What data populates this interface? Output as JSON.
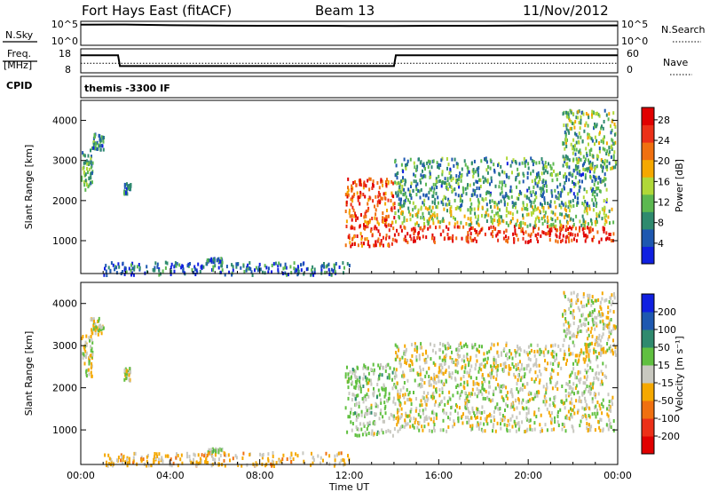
{
  "header": {
    "station": "Fort Hays East (fitACF)",
    "beam": "Beam 13",
    "date": "11/Nov/2012"
  },
  "strips": {
    "nsky_label": "N.Sky",
    "nsky_ticks": [
      "10^5",
      "10^0"
    ],
    "nsearch_label": "N.Search",
    "nsearch_ticks": [
      "10^5",
      "10^0"
    ],
    "freq_label_1": "Freq.",
    "freq_label_2": "[MHz]",
    "freq_ticks": [
      "18",
      "8"
    ],
    "nave_label": "Nave",
    "nave_ticks": [
      "60",
      "0"
    ],
    "cpid_label": "CPID",
    "cpid_value": "themis -3300 IF"
  },
  "chart_data": [
    {
      "type": "line",
      "title": "N.Sky / N.Search",
      "x": [
        "00:00",
        "02:00",
        "04:00",
        "06:00",
        "08:00",
        "10:00",
        "12:00",
        "14:00",
        "16:00",
        "18:00",
        "20:00",
        "22:00",
        "24:00"
      ],
      "yscale": "log",
      "ylim": [
        1,
        100000
      ],
      "series": [
        {
          "name": "N.Sky",
          "values": [
            20000,
            22000,
            15000,
            13000,
            12000,
            12000,
            11000,
            11000,
            12000,
            12000,
            13000,
            13000,
            14000
          ]
        }
      ]
    },
    {
      "type": "line",
      "title": "Freq. / Nave",
      "x": [
        "00:00",
        "01:40",
        "01:45",
        "14:00",
        "14:05",
        "24:00"
      ],
      "ylim": [
        8,
        18
      ],
      "series": [
        {
          "name": "Freq.",
          "values": [
            15.3,
            15.3,
            10.8,
            10.8,
            15.3,
            15.3
          ]
        },
        {
          "name": "Nave",
          "values": [
            24,
            24,
            24,
            24,
            24,
            24
          ]
        }
      ]
    },
    {
      "type": "heatmap",
      "xlabel": "",
      "ylabel": "Slant Range [km]",
      "xlim": [
        0,
        24
      ],
      "ylim": [
        180,
        4500
      ],
      "yticks": [
        1000,
        2000,
        3000,
        4000
      ],
      "colorbar": {
        "label": "Power [dB]",
        "ticks": [
          "4",
          "8",
          "12",
          "16",
          "20",
          "24",
          "28"
        ],
        "range": [
          0,
          30
        ]
      },
      "colors": [
        "#1020e0",
        "#1e58b0",
        "#2f8a6e",
        "#5cb850",
        "#b0d838",
        "#f5a800",
        "#f07010",
        "#ec3018",
        "#e00000"
      ],
      "regions": [
        {
          "t": [
            0.0,
            0.5
          ],
          "range": [
            2300,
            3300
          ],
          "level": 10
        },
        {
          "t": [
            0.4,
            1.0
          ],
          "range": [
            3300,
            3700
          ],
          "level": 8
        },
        {
          "t": [
            1.9,
            2.2
          ],
          "range": [
            2200,
            2500
          ],
          "level": 6
        },
        {
          "t": [
            5.6,
            6.3
          ],
          "range": [
            500,
            600
          ],
          "level": 6
        },
        {
          "t": [
            1.0,
            12.0
          ],
          "range": [
            180,
            500
          ],
          "level": 6
        },
        {
          "t": [
            11.8,
            14.0
          ],
          "range": [
            900,
            2600
          ],
          "level": 24
        },
        {
          "t": [
            14.0,
            23.8
          ],
          "range": [
            1000,
            1400
          ],
          "level": 26
        },
        {
          "t": [
            14.0,
            23.8
          ],
          "range": [
            1400,
            1900
          ],
          "level": 14
        },
        {
          "t": [
            14.0,
            23.5
          ],
          "range": [
            1900,
            3100
          ],
          "level": 9
        },
        {
          "t": [
            21.5,
            23.9
          ],
          "range": [
            2800,
            4300
          ],
          "level": 12
        }
      ]
    },
    {
      "type": "heatmap",
      "xlabel": "Time UT",
      "ylabel": "Slant Range [km]",
      "xlim": [
        0,
        24
      ],
      "ylim": [
        180,
        4500
      ],
      "yticks": [
        1000,
        2000,
        3000,
        4000
      ],
      "xticks": [
        "00:00",
        "04:00",
        "08:00",
        "12:00",
        "16:00",
        "20:00",
        "00:00"
      ],
      "colorbar": {
        "label": "Velocity [m s⁻¹]",
        "ticks": [
          "200",
          "100",
          "50",
          "15",
          "-15",
          "-50",
          "-100",
          "-200"
        ],
        "range": [
          -250,
          250
        ]
      },
      "colors": [
        "#e00000",
        "#ec3018",
        "#f07010",
        "#f5a800",
        "#c8c8c0",
        "#60c040",
        "#2f8a6e",
        "#1e58b0",
        "#1020e0"
      ],
      "regions": [
        {
          "t": [
            0.0,
            0.5
          ],
          "range": [
            2300,
            3300
          ],
          "level": 0
        },
        {
          "t": [
            0.4,
            1.0
          ],
          "range": [
            3300,
            3700
          ],
          "level": 0
        },
        {
          "t": [
            1.9,
            2.2
          ],
          "range": [
            2200,
            2500
          ],
          "level": 0
        },
        {
          "t": [
            5.6,
            6.3
          ],
          "range": [
            500,
            600
          ],
          "level": 30
        },
        {
          "t": [
            1.0,
            12.0
          ],
          "range": [
            180,
            500
          ],
          "level": -40
        },
        {
          "t": [
            11.8,
            14.0
          ],
          "range": [
            900,
            2600
          ],
          "level": 30
        },
        {
          "t": [
            14.0,
            23.8
          ],
          "range": [
            1000,
            1900
          ],
          "level": 0
        },
        {
          "t": [
            14.0,
            23.5
          ],
          "range": [
            1900,
            3100
          ],
          "level": 0
        },
        {
          "t": [
            21.5,
            23.9
          ],
          "range": [
            2800,
            4300
          ],
          "level": 0
        }
      ]
    }
  ]
}
